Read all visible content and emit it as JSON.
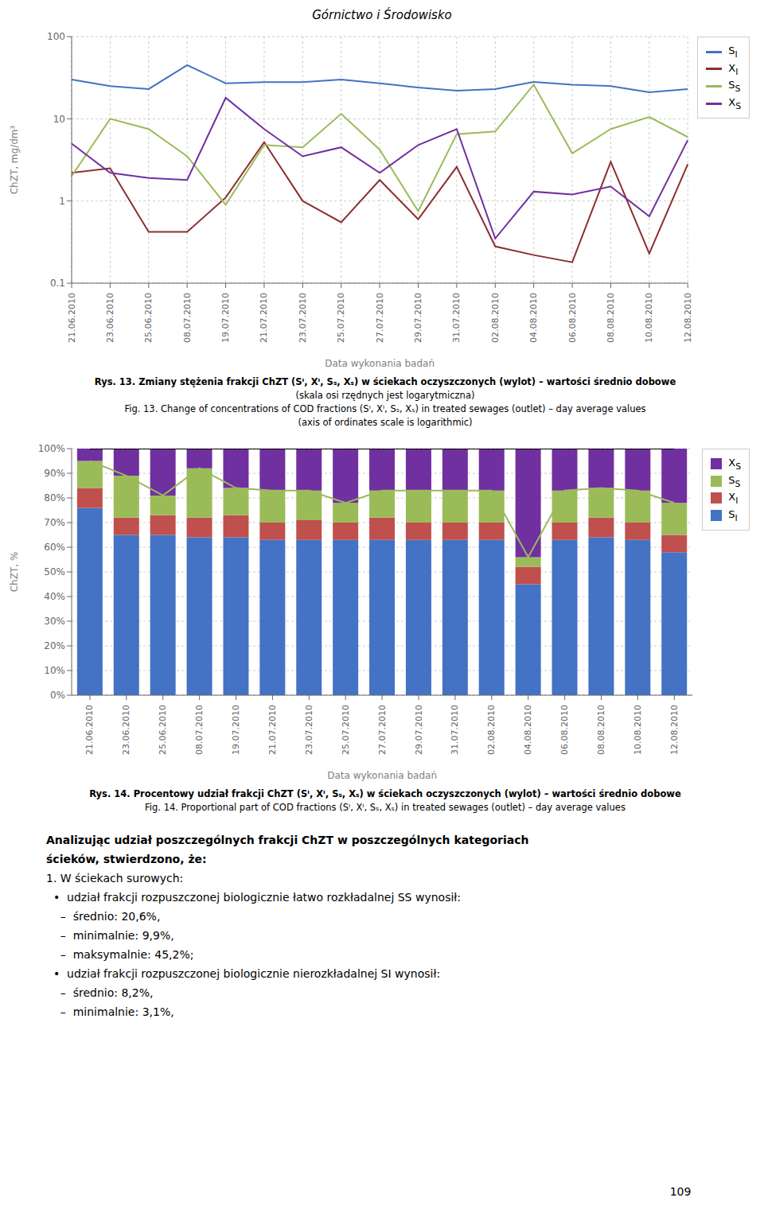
{
  "title": "Górnictwo i Środowisko",
  "chart_data": [
    {
      "type": "line",
      "x_label": "Data wykonania badań",
      "y_label": "ChZT, mg/dm³",
      "categories": [
        "21.06.2010",
        "23.06.2010",
        "25.06.2010",
        "08.07.2010",
        "19.07.2010",
        "21.07.2010",
        "23.07.2010",
        "25.07.2010",
        "27.07.2010",
        "29.07.2010",
        "31.07.2010",
        "02.08.2010",
        "04.08.2010",
        "06.08.2010",
        "08.08.2010",
        "10.08.2010",
        "12.08.2010"
      ],
      "series": [
        {
          "name": "SI",
          "color": "#4472C4",
          "values": [
            30,
            25,
            23,
            45,
            27,
            28,
            28,
            30,
            27,
            24,
            22,
            23,
            28,
            26,
            25,
            21,
            23
          ]
        },
        {
          "name": "XI",
          "color": "#8B3030",
          "values": [
            2.2,
            2.5,
            0.42,
            0.42,
            1.1,
            5.2,
            1.0,
            0.55,
            1.8,
            0.6,
            2.6,
            0.28,
            0.22,
            0.18,
            3.0,
            0.23,
            2.8
          ]
        },
        {
          "name": "SS",
          "color": "#9BBB59",
          "values": [
            2.0,
            10.0,
            7.5,
            3.5,
            0.9,
            4.8,
            4.5,
            11.5,
            4.2,
            0.75,
            6.5,
            7.0,
            26.0,
            3.8,
            7.5,
            10.5,
            6.0
          ]
        },
        {
          "name": "XS",
          "color": "#7030A0",
          "values": [
            5.0,
            2.2,
            1.9,
            1.8,
            18.0,
            7.5,
            3.5,
            4.5,
            2.2,
            4.8,
            7.5,
            0.35,
            1.3,
            1.2,
            1.5,
            0.65,
            5.5
          ]
        }
      ],
      "log": "y",
      "ylim": [
        0.1,
        100
      ],
      "yticks": [
        0.1,
        1,
        10,
        100
      ],
      "grid": true,
      "legend": "upper right",
      "annotations": [
        "Rys. 13. Zmiany stężenia frakcji ChZT (Sᴵ, Xᴵ, Sₛ, Xₛ) w ściekach oczyszczonych (wylot) – wartości średnio dobowe",
        "(skala osi rzędnych jest logarytmiczna)",
        "Fig. 13. Change of concentrations of COD fractions (Sᴵ, Xᴵ, Sₛ, Xₛ) in treated sewages (outlet) – day average values",
        "(axis of ordinates scale is logarithmic)"
      ]
    },
    {
      "type": "bar",
      "stacked": true,
      "x_label": "Data wykonania badań",
      "y_label": "ChZT, %",
      "categories": [
        "21.06.2010",
        "23.06.2010",
        "25.06.2010",
        "08.07.2010",
        "19.07.2010",
        "21.07.2010",
        "23.07.2010",
        "25.07.2010",
        "27.07.2010",
        "29.07.2010",
        "31.07.2010",
        "02.08.2010",
        "04.08.2010",
        "06.08.2010",
        "08.08.2010",
        "10.08.2010",
        "12.08.2010"
      ],
      "series": [
        {
          "name": "SI",
          "color": "#4472C4",
          "values": [
            76,
            65,
            65,
            64,
            64,
            63,
            63,
            63,
            63,
            63,
            63,
            63,
            45,
            63,
            64,
            63,
            58
          ]
        },
        {
          "name": "XI",
          "color": "#C0504D",
          "values": [
            8,
            7,
            8,
            8,
            9,
            7,
            8,
            7,
            9,
            7,
            7,
            7,
            7,
            7,
            8,
            7,
            7
          ]
        },
        {
          "name": "SS",
          "color": "#9BBB59",
          "values": [
            11,
            17,
            8,
            20,
            11,
            13,
            12,
            8,
            11,
            13,
            13,
            13,
            4,
            13,
            12,
            13,
            13
          ]
        },
        {
          "name": "XS",
          "color": "#7030A0",
          "values": [
            5,
            11,
            19,
            8,
            16,
            17,
            17,
            22,
            17,
            17,
            17,
            17,
            44,
            17,
            16,
            17,
            22
          ]
        },
        {
          "type": "line",
          "color": "#9BBB59",
          "values": [
            95,
            89,
            81,
            92,
            84,
            83,
            83,
            78,
            83,
            83,
            83,
            83,
            56,
            83,
            84,
            83,
            78
          ]
        },
        {
          "type": "line",
          "color": "#000000",
          "values": [
            100,
            100,
            100,
            100,
            100,
            100,
            100,
            100,
            100,
            100,
            100,
            100,
            100,
            100,
            100,
            100,
            100
          ]
        }
      ],
      "ylim": [
        0,
        100
      ],
      "yticks": [
        {
          "value": 0,
          "label": "0%"
        },
        {
          "value": 10,
          "label": "10%"
        },
        {
          "value": 20,
          "label": "20%"
        },
        {
          "value": 30,
          "label": "30%"
        },
        {
          "value": 40,
          "label": "40%"
        },
        {
          "value": 50,
          "label": "50%"
        },
        {
          "value": 60,
          "label": "60%"
        },
        {
          "value": 70,
          "label": "70%"
        },
        {
          "value": 80,
          "label": "80%"
        },
        {
          "value": 90,
          "label": "90%"
        },
        {
          "value": 100,
          "label": "100%"
        }
      ],
      "grid": "y",
      "legend": "upper right",
      "annotations": [
        "Rys. 14. Procentowy udział frakcji ChZT (Sᴵ, Xᴵ, Sₛ, Xₛ) w ściekach oczyszczonych (wylot) – wartości średnio dobowe",
        "Fig. 14. Proportional part of COD fractions (Sᴵ, Xᴵ, Sₛ, Xₛ) in treated sewages (outlet) – day average values"
      ]
    }
  ],
  "annotations": [
    "Analizując udział poszczególnych frakcji ChZT w poszczególnych kategoriach",
    "ścieków, stwierdzono, że:",
    "1. W ściekach surowych:",
    "  •  udział frakcji rozpuszczonej biologicznie łatwo rozkładalnej SS wynosił:",
    "    –  średnio: 20,6%,",
    "    –  minimalnie: 9,9%,",
    "    –  maksymalnie: 45,2%;",
    "  •  udział frakcji rozpuszczonej biologicznie nierozkładalnej SI wynosił:",
    "    –  średnio: 8,2%,",
    "    –  minimalnie: 3,1%,",
    "109"
  ]
}
